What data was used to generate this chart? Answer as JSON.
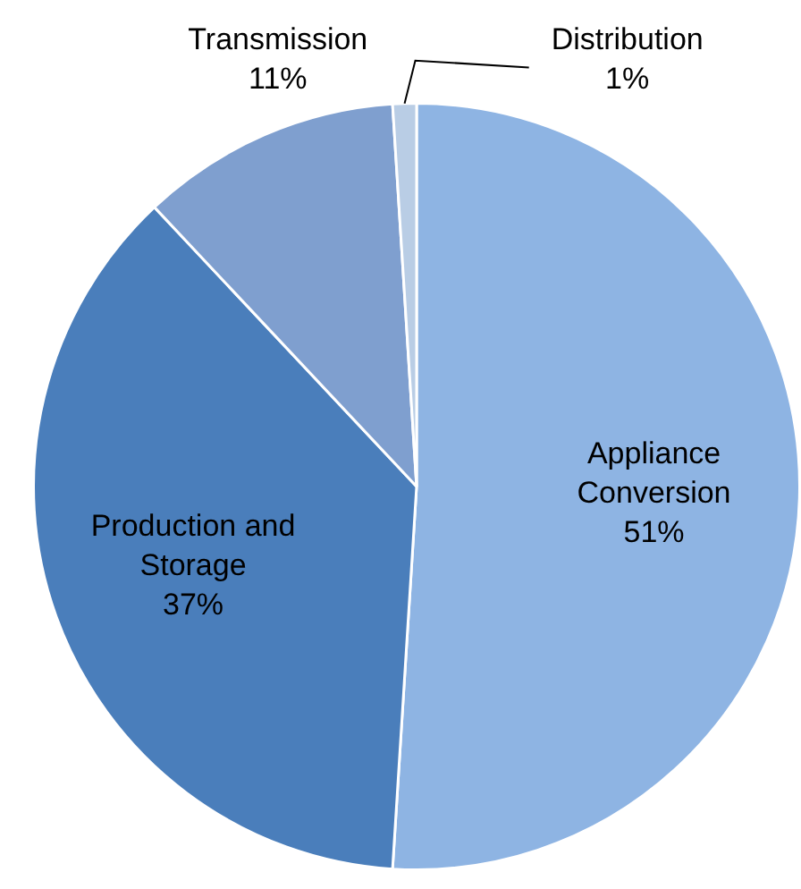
{
  "chart_data": {
    "type": "pie",
    "categories": [
      "Appliance Conversion",
      "Production and Storage",
      "Transmission",
      "Distribution"
    ],
    "values": [
      51,
      37,
      11,
      1
    ],
    "colors": [
      "#8eb4e3",
      "#4a7ebb",
      "#7f9fcf",
      "#b9cde5"
    ],
    "value_labels": [
      "51%",
      "37%",
      "11%",
      "1%"
    ],
    "legend": false
  }
}
